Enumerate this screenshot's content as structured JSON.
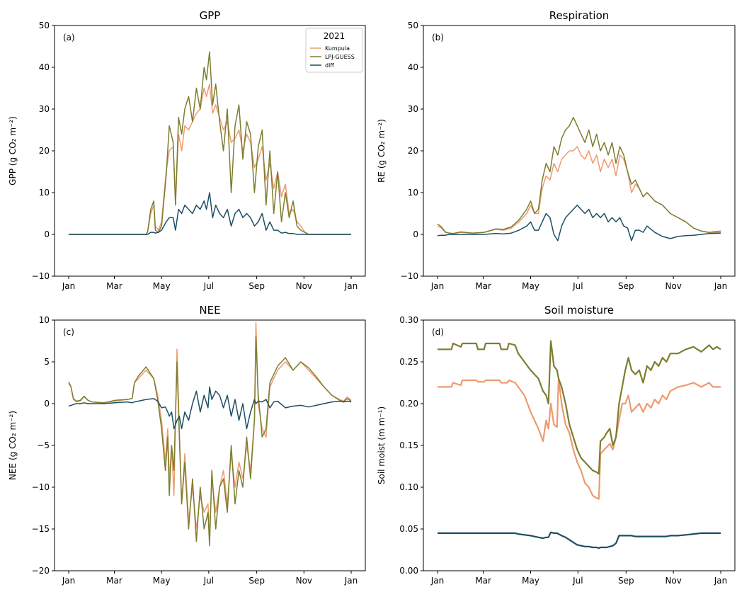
{
  "colors": {
    "kumpula": "#ee9a6e",
    "lpjguess": "#7d7e2f",
    "diff": "#1c4f64",
    "axis": "#000000"
  },
  "legend": {
    "title": "2021",
    "entries": [
      "Kumpula",
      "LPJ-GUESS",
      "diff"
    ]
  },
  "chart_data": [
    {
      "type": "line",
      "title": "GPP",
      "panel_label": "(a)",
      "ylabel": "GPP (g CO₂ m⁻²)",
      "ylim": [
        -10,
        50
      ],
      "yticks": [
        -10,
        0,
        10,
        20,
        30,
        40,
        50
      ],
      "xlim": [
        0,
        365
      ],
      "xtick_positions": [
        0,
        59,
        120,
        181,
        243,
        304,
        365
      ],
      "xtick_labels": [
        "Jan",
        "Mar",
        "May",
        "Jul",
        "Sep",
        "Nov",
        "Jan"
      ],
      "x": [
        0,
        100,
        102,
        106,
        110,
        112,
        116,
        120,
        126,
        130,
        135,
        138,
        142,
        146,
        150,
        155,
        160,
        165,
        170,
        175,
        178,
        182,
        186,
        190,
        195,
        200,
        205,
        210,
        215,
        220,
        225,
        230,
        235,
        240,
        245,
        250,
        255,
        260,
        265,
        270,
        275,
        280,
        285,
        290,
        295,
        300,
        305,
        310,
        365
      ],
      "series": [
        {
          "name": "Kumpula",
          "values": [
            0,
            0,
            0.6,
            5,
            7,
            2,
            1,
            3,
            15,
            20,
            21,
            8,
            24,
            20,
            26,
            25,
            27,
            29,
            30,
            35,
            33,
            36,
            29,
            31,
            28,
            25,
            27,
            22,
            23,
            25,
            20,
            24,
            22,
            16,
            18,
            21,
            13,
            17,
            11,
            15,
            9,
            12,
            5,
            6,
            3,
            2,
            0.6,
            0,
            0
          ]
        },
        {
          "name": "LPJ-GUESS",
          "values": [
            0,
            0,
            0.6,
            6,
            8,
            1,
            0.5,
            2,
            14,
            26,
            22,
            7,
            28,
            24,
            30,
            33,
            27,
            35,
            30,
            40,
            37,
            43.7,
            31,
            36,
            27,
            20,
            30,
            10,
            26,
            31,
            18,
            27,
            24,
            10,
            21,
            25,
            7,
            20,
            5,
            15,
            3,
            10,
            4,
            8,
            2,
            1,
            0.5,
            0,
            0
          ]
        },
        {
          "name": "diff",
          "values": [
            0,
            0,
            0,
            0.5,
            0.5,
            0.3,
            0.5,
            1,
            3,
            4,
            4,
            1,
            6,
            5,
            7,
            6,
            5,
            7,
            6,
            8,
            6,
            10,
            4,
            7,
            5,
            4,
            6,
            2,
            5,
            6,
            4,
            5,
            4,
            2,
            3,
            5,
            1,
            3,
            1,
            1,
            0.3,
            0.5,
            0.2,
            0.2,
            0,
            0,
            0,
            0,
            0
          ]
        }
      ]
    },
    {
      "type": "line",
      "title": "Respiration",
      "panel_label": "(b)",
      "ylabel": "RE (g CO₂ m⁻²)",
      "ylim": [
        -10,
        50
      ],
      "yticks": [
        -10,
        0,
        10,
        20,
        30,
        40,
        50
      ],
      "xlim": [
        0,
        365
      ],
      "xtick_positions": [
        0,
        59,
        120,
        181,
        243,
        304,
        365
      ],
      "xtick_labels": [
        "Jan",
        "Mar",
        "May",
        "Jul",
        "Sep",
        "Nov",
        "Jan"
      ],
      "x": [
        0,
        5,
        10,
        15,
        20,
        30,
        45,
        60,
        75,
        85,
        95,
        105,
        115,
        120,
        125,
        130,
        135,
        140,
        145,
        150,
        155,
        160,
        165,
        170,
        175,
        180,
        185,
        190,
        195,
        200,
        205,
        210,
        215,
        220,
        225,
        230,
        235,
        240,
        245,
        250,
        255,
        260,
        265,
        270,
        280,
        290,
        300,
        310,
        320,
        330,
        340,
        350,
        365
      ],
      "series": [
        {
          "name": "Kumpula",
          "values": [
            2,
            1.5,
            0.5,
            0.3,
            0.2,
            0.5,
            0.3,
            0.5,
            1.2,
            1,
            1.5,
            3,
            5,
            7,
            5,
            5,
            11,
            14,
            13,
            17,
            15,
            18,
            19,
            20,
            20,
            21,
            19,
            18,
            20,
            17,
            19,
            15,
            18,
            16,
            18,
            14,
            19,
            18,
            15,
            10,
            12,
            11,
            9,
            10,
            8,
            7,
            5,
            4,
            3,
            1.5,
            0.8,
            0.4,
            0.4
          ]
        },
        {
          "name": "LPJ-GUESS",
          "values": [
            2.5,
            1.8,
            0.6,
            0.3,
            0.2,
            0.6,
            0.3,
            0.5,
            1.3,
            1.2,
            1.8,
            3.5,
            6,
            8,
            5,
            6,
            13,
            17,
            15,
            21,
            19,
            23,
            25,
            26,
            28,
            26,
            24,
            22,
            25,
            21,
            24,
            20,
            22,
            19,
            22,
            17,
            21,
            19,
            15,
            12,
            13,
            11,
            9,
            10,
            8,
            7,
            5,
            4,
            3,
            1.5,
            0.8,
            0.5,
            0.8
          ]
        },
        {
          "name": "diff",
          "values": [
            -0.3,
            -0.2,
            -0.2,
            0,
            0,
            0,
            0,
            0,
            0.2,
            0.1,
            0.3,
            1,
            2,
            3,
            1,
            1,
            3,
            5,
            4,
            0,
            -1.5,
            2,
            4,
            5,
            6,
            7,
            6,
            5,
            6,
            4,
            5,
            4,
            5,
            3,
            4,
            3,
            4,
            2,
            1.5,
            -1.5,
            1,
            1,
            0.5,
            2,
            0.5,
            -0.5,
            -1,
            -0.5,
            -0.3,
            -0.2,
            0,
            0.2,
            0.3
          ]
        }
      ]
    },
    {
      "type": "line",
      "title": "NEE",
      "panel_label": "(c)",
      "ylabel": "NEE (g CO₂ m⁻²)",
      "ylim": [
        -20,
        10
      ],
      "yticks": [
        -20,
        -15,
        -10,
        -5,
        0,
        5,
        10
      ],
      "xlim": [
        0,
        365
      ],
      "xtick_positions": [
        0,
        59,
        120,
        181,
        243,
        304,
        365
      ],
      "xtick_labels": [
        "Jan",
        "Mar",
        "May",
        "Jul",
        "Sep",
        "Nov",
        "Jan"
      ],
      "x": [
        0,
        3,
        6,
        10,
        15,
        20,
        25,
        30,
        45,
        60,
        75,
        82,
        85,
        90,
        100,
        110,
        115,
        120,
        125,
        128,
        130,
        133,
        136,
        140,
        143,
        146,
        150,
        155,
        160,
        165,
        170,
        175,
        180,
        182,
        185,
        190,
        195,
        200,
        205,
        210,
        215,
        220,
        225,
        230,
        235,
        240,
        242,
        245,
        250,
        255,
        260,
        265,
        270,
        280,
        290,
        300,
        310,
        320,
        330,
        340,
        350,
        355,
        360,
        365
      ],
      "series": [
        {
          "name": "Kumpula",
          "values": [
            2.4,
            2,
            0.5,
            0.2,
            0.3,
            0.8,
            0.4,
            0.2,
            0.1,
            0.3,
            0.5,
            0.6,
            2.5,
            3,
            4,
            3,
            1,
            -2,
            -7,
            -3,
            -9,
            -5,
            -11,
            6.5,
            -3,
            -12,
            -6,
            -14,
            -10,
            -15,
            -11,
            -13,
            -12,
            -16,
            -9,
            -13,
            -10,
            -8,
            -12,
            -6,
            -10,
            -7,
            -9,
            -5,
            -8,
            -2,
            9.7,
            0,
            -3,
            -4,
            2,
            3,
            4,
            5,
            4,
            5,
            4,
            3,
            2,
            1,
            0.5,
            0.3,
            0.8,
            0.4
          ]
        },
        {
          "name": "LPJ-GUESS",
          "values": [
            2.6,
            2,
            0.6,
            0.3,
            0.4,
            0.9,
            0.4,
            0.2,
            0.1,
            0.4,
            0.5,
            0.6,
            2.5,
            3.3,
            4.4,
            3,
            0.5,
            -3,
            -8,
            -4,
            -11,
            -5,
            -8,
            5,
            -4,
            -12,
            -7,
            -15,
            -9,
            -16.5,
            -10,
            -15,
            -13,
            -17,
            -8,
            -15,
            -10,
            -9,
            -13,
            -5,
            -12,
            -8,
            -10,
            -4,
            -9,
            -2,
            8,
            1,
            -4,
            -3,
            2.5,
            3.5,
            4.5,
            5.5,
            4,
            5,
            4.3,
            3.2,
            2,
            1,
            0.4,
            0.2,
            0.6,
            0.3
          ]
        },
        {
          "name": "diff",
          "values": [
            -0.3,
            -0.2,
            -0.1,
            0,
            0,
            0.1,
            0,
            0,
            0,
            0.1,
            0.2,
            0.1,
            0.2,
            0.3,
            0.5,
            0.6,
            0.3,
            -0.5,
            -0.4,
            -1,
            -1.5,
            -1,
            -3,
            -2,
            -1.5,
            -3,
            -1,
            -2,
            0,
            1.5,
            -1,
            1,
            -0.5,
            2,
            0.5,
            1.5,
            1,
            -0.5,
            1,
            -1.5,
            0.5,
            -2,
            0,
            -3,
            -1,
            0.5,
            0,
            0.3,
            0.2,
            0.5,
            -0.5,
            0.2,
            0.3,
            -0.5,
            -0.3,
            -0.2,
            -0.4,
            -0.2,
            0,
            0.2,
            0.3,
            0.2,
            0.3,
            0.2
          ]
        }
      ]
    },
    {
      "type": "line",
      "title": "Soil moisture",
      "panel_label": "(d)",
      "ylabel": "Soil moist (m m⁻¹)",
      "ylim": [
        0,
        0.3
      ],
      "yticks": [
        0.0,
        0.05,
        0.1,
        0.15,
        0.2,
        0.25,
        0.3
      ],
      "ytick_labels": [
        "0.00",
        "0.05",
        "0.10",
        "0.15",
        "0.20",
        "0.25",
        "0.30"
      ],
      "xlim": [
        0,
        365
      ],
      "xtick_positions": [
        0,
        59,
        120,
        181,
        243,
        304,
        365
      ],
      "xtick_labels": [
        "Jan",
        "Mar",
        "May",
        "Jul",
        "Sep",
        "Nov",
        "Jan"
      ],
      "x": [
        0,
        18,
        20,
        30,
        32,
        50,
        52,
        60,
        62,
        80,
        82,
        90,
        92,
        100,
        104,
        112,
        120,
        130,
        136,
        140,
        143,
        146,
        150,
        154,
        156,
        160,
        165,
        170,
        175,
        180,
        185,
        190,
        195,
        200,
        205,
        208,
        210,
        215,
        218,
        222,
        226,
        230,
        234,
        238,
        242,
        246,
        250,
        255,
        260,
        265,
        270,
        275,
        280,
        285,
        290,
        295,
        300,
        310,
        320,
        330,
        340,
        350,
        355,
        360,
        365
      ],
      "series": [
        {
          "name": "Kumpula",
          "values": [
            0.22,
            0.22,
            0.225,
            0.222,
            0.228,
            0.228,
            0.226,
            0.226,
            0.228,
            0.228,
            0.225,
            0.225,
            0.228,
            0.225,
            0.22,
            0.21,
            0.19,
            0.17,
            0.155,
            0.18,
            0.17,
            0.2,
            0.175,
            0.172,
            0.23,
            0.2,
            0.175,
            0.165,
            0.145,
            0.13,
            0.12,
            0.105,
            0.1,
            0.09,
            0.087,
            0.086,
            0.14,
            0.145,
            0.148,
            0.152,
            0.145,
            0.16,
            0.18,
            0.2,
            0.2,
            0.21,
            0.19,
            0.195,
            0.2,
            0.19,
            0.2,
            0.195,
            0.205,
            0.2,
            0.21,
            0.205,
            0.215,
            0.22,
            0.222,
            0.225,
            0.22,
            0.225,
            0.22,
            0.22,
            0.22
          ]
        },
        {
          "name": "LPJ-GUESS",
          "values": [
            0.265,
            0.265,
            0.272,
            0.268,
            0.272,
            0.272,
            0.265,
            0.265,
            0.272,
            0.272,
            0.265,
            0.265,
            0.272,
            0.27,
            0.26,
            0.25,
            0.24,
            0.23,
            0.215,
            0.21,
            0.2,
            0.275,
            0.245,
            0.24,
            0.23,
            0.22,
            0.2,
            0.175,
            0.16,
            0.145,
            0.135,
            0.13,
            0.125,
            0.12,
            0.118,
            0.116,
            0.155,
            0.16,
            0.165,
            0.17,
            0.15,
            0.16,
            0.2,
            0.22,
            0.24,
            0.255,
            0.24,
            0.235,
            0.24,
            0.225,
            0.245,
            0.24,
            0.25,
            0.245,
            0.255,
            0.25,
            0.26,
            0.26,
            0.265,
            0.268,
            0.262,
            0.27,
            0.265,
            0.268,
            0.265
          ]
        },
        {
          "name": "diff",
          "values": [
            0.045,
            0.045,
            0.045,
            0.045,
            0.045,
            0.045,
            0.045,
            0.045,
            0.045,
            0.045,
            0.045,
            0.045,
            0.045,
            0.045,
            0.044,
            0.043,
            0.042,
            0.04,
            0.039,
            0.04,
            0.04,
            0.046,
            0.045,
            0.045,
            0.044,
            0.042,
            0.04,
            0.037,
            0.034,
            0.031,
            0.03,
            0.029,
            0.029,
            0.028,
            0.028,
            0.027,
            0.028,
            0.028,
            0.028,
            0.029,
            0.03,
            0.033,
            0.042,
            0.042,
            0.042,
            0.042,
            0.042,
            0.041,
            0.041,
            0.041,
            0.041,
            0.041,
            0.041,
            0.041,
            0.041,
            0.041,
            0.042,
            0.042,
            0.043,
            0.044,
            0.045,
            0.045,
            0.045,
            0.045,
            0.045
          ]
        }
      ]
    }
  ]
}
